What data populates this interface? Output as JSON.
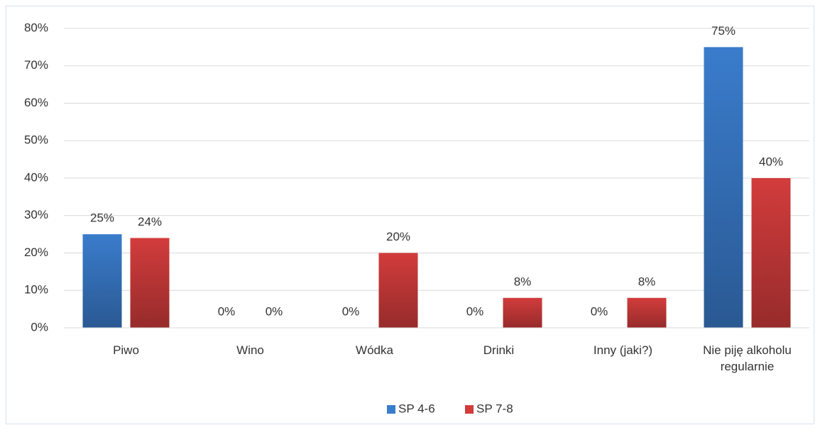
{
  "chart_data": {
    "type": "bar",
    "categories": [
      "Piwo",
      "Wino",
      "Wódka",
      "Drinki",
      "Inny (jaki?)",
      "Nie piję alkoholu regularnie"
    ],
    "series": [
      {
        "name": "SP 4-6",
        "color": "#3a7ccc",
        "values": [
          25,
          0,
          0,
          0,
          0,
          75
        ],
        "value_labels": [
          "25%",
          "0%",
          "0%",
          "0%",
          "0%",
          "75%"
        ]
      },
      {
        "name": "SP 7-8",
        "color": "#d23c3c",
        "values": [
          24,
          0,
          20,
          8,
          8,
          40
        ],
        "value_labels": [
          "24%",
          "0%",
          "20%",
          "8%",
          "8%",
          "40%"
        ]
      }
    ],
    "ylim": [
      0,
      80
    ],
    "yticks": [
      {
        "value": 0,
        "label": "0%"
      },
      {
        "value": 10,
        "label": "10%"
      },
      {
        "value": 20,
        "label": "20%"
      },
      {
        "value": 30,
        "label": "30%"
      },
      {
        "value": 40,
        "label": "40%"
      },
      {
        "value": 50,
        "label": "50%"
      },
      {
        "value": 60,
        "label": "60%"
      },
      {
        "value": 70,
        "label": "70%"
      },
      {
        "value": 80,
        "label": "80%"
      }
    ],
    "grid": true,
    "legend": "bottom"
  }
}
